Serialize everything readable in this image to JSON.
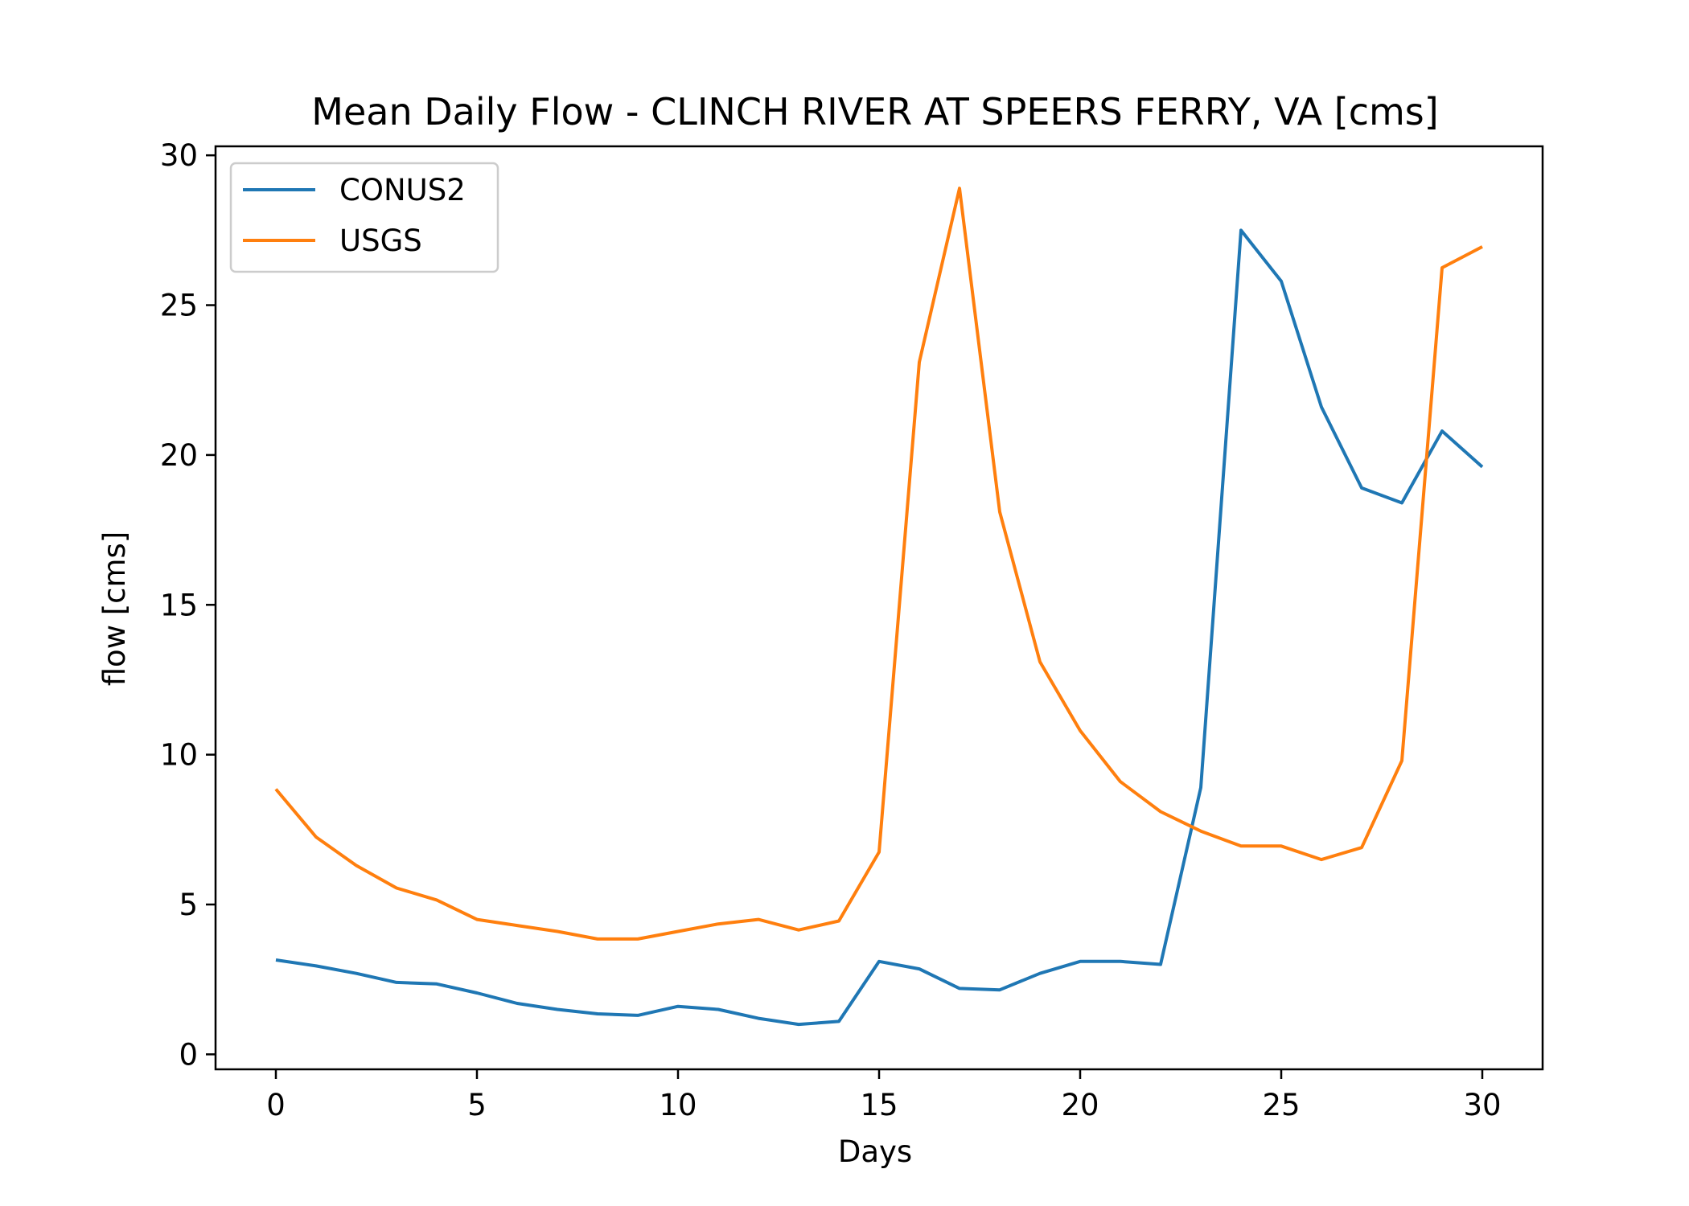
{
  "chart_data": {
    "type": "line",
    "title": "Mean Daily Flow - CLINCH RIVER AT SPEERS FERRY, VA [cms]",
    "xlabel": "Days",
    "ylabel": "flow [cms]",
    "xlim": [
      -1.5,
      31.5
    ],
    "ylim": [
      -0.5,
      30.3
    ],
    "xticks": [
      0,
      5,
      10,
      15,
      20,
      25,
      30
    ],
    "yticks": [
      0,
      5,
      10,
      15,
      20,
      25,
      30
    ],
    "grid": false,
    "legend_position": "upper left",
    "x": [
      0,
      1,
      2,
      3,
      4,
      5,
      6,
      7,
      8,
      9,
      10,
      11,
      12,
      13,
      14,
      15,
      16,
      17,
      18,
      19,
      20,
      21,
      22,
      23,
      24,
      25,
      26,
      27,
      28,
      29,
      30
    ],
    "series": [
      {
        "name": "CONUS2",
        "color": "#1f77b4",
        "values": [
          3.15,
          2.95,
          2.7,
          2.4,
          2.35,
          2.05,
          1.7,
          1.5,
          1.35,
          1.3,
          1.6,
          1.5,
          1.2,
          1.0,
          1.1,
          3.1,
          2.85,
          2.2,
          2.15,
          2.7,
          3.1,
          3.1,
          3.0,
          8.9,
          27.5,
          25.8,
          21.6,
          18.9,
          18.4,
          20.8,
          19.6
        ]
      },
      {
        "name": "USGS",
        "color": "#ff7f0e",
        "values": [
          8.85,
          7.25,
          6.3,
          5.55,
          5.15,
          4.5,
          4.3,
          4.1,
          3.85,
          3.85,
          4.1,
          4.35,
          4.5,
          4.15,
          4.45,
          6.75,
          23.1,
          28.9,
          18.1,
          13.1,
          10.8,
          9.1,
          8.1,
          7.45,
          6.95,
          6.95,
          6.5,
          6.9,
          9.8,
          26.25,
          26.95
        ]
      }
    ]
  }
}
